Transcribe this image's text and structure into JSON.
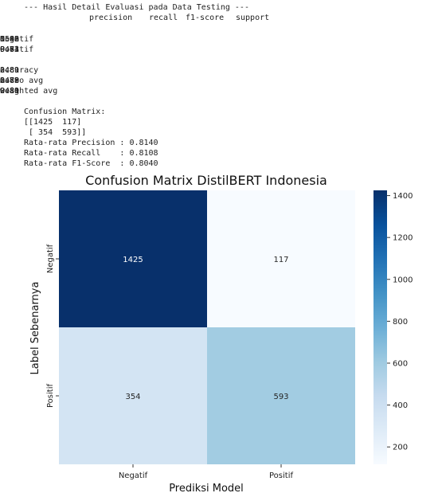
{
  "report": {
    "header_line": "--- Hasil Detail Evaluasi pada Data Testing ---",
    "columns": [
      "precision",
      "recall",
      "f1-score",
      "support"
    ],
    "rows": [
      {
        "label": "Negatif",
        "precision": "0.80",
        "recall": "0.92",
        "f1": "0.86",
        "support": "1542"
      },
      {
        "label": "Positif",
        "precision": "0.84",
        "recall": "0.63",
        "f1": "0.72",
        "support": "947"
      }
    ],
    "summary_rows": [
      {
        "label": "accuracy",
        "precision": "",
        "recall": "",
        "f1": "0.81",
        "support": "2489"
      },
      {
        "label": "macro avg",
        "precision": "0.82",
        "recall": "0.78",
        "f1": "0.79",
        "support": "2489"
      },
      {
        "label": "weighted avg",
        "precision": "0.81",
        "recall": "0.81",
        "f1": "0.80",
        "support": "2489"
      }
    ],
    "cm_title": "Confusion Matrix:",
    "cm_line1": "[[1425  117]",
    "cm_line2": " [ 354  593]]",
    "avg_precision": "Rata-rata Precision : 0.8140",
    "avg_recall": "Rata-rata Recall    : 0.8108",
    "avg_f1": "Rata-rata F1-Score  : 0.8040"
  },
  "chart_data": {
    "type": "heatmap",
    "title": "Confusion Matrix DistilBERT Indonesia",
    "xlabel": "Prediksi Model",
    "ylabel": "Label Sebenarnya",
    "x_categories": [
      "Negatif",
      "Positif"
    ],
    "y_categories": [
      "Negatif",
      "Positif"
    ],
    "values": [
      [
        1425,
        117
      ],
      [
        354,
        593
      ]
    ],
    "colormap": "Blues",
    "colorbar_range": [
      117,
      1425
    ],
    "colorbar_ticks": [
      200,
      400,
      600,
      800,
      1000,
      1200,
      1400
    ],
    "colors": {
      "low": "#f7fbff",
      "high": "#08306b"
    }
  }
}
